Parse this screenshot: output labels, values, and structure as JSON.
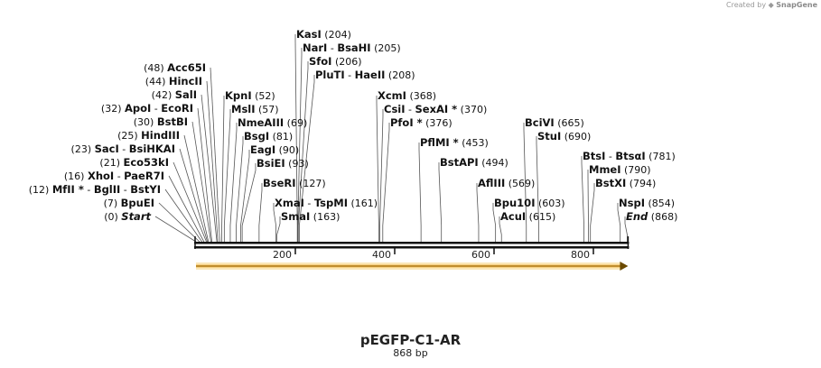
{
  "watermark": {
    "prefix": "Created by",
    "brand": "SnapGene"
  },
  "plasmid": {
    "name": "pEGFP-C1-AR",
    "length_label": "868 bp",
    "length_bp": 868
  },
  "ruler": {
    "ticks": [
      {
        "value": 200,
        "label": "200"
      },
      {
        "value": 400,
        "label": "400"
      },
      {
        "value": 600,
        "label": "600"
      },
      {
        "value": 800,
        "label": "800"
      }
    ]
  },
  "feature": {
    "start": 0,
    "end": 868,
    "direction": "forward",
    "color": "#f2b84b"
  },
  "left_sites": [
    {
      "bp": 0,
      "names": [
        "Start"
      ],
      "pos_label": "(0)",
      "italic": true
    },
    {
      "bp": 7,
      "names": [
        "BpuEI"
      ],
      "pos_label": "(7)"
    },
    {
      "bp": 12,
      "names": [
        "MfII *",
        "BglII",
        "BstYI"
      ],
      "pos_label": "(12)"
    },
    {
      "bp": 16,
      "names": [
        "XhoI",
        "PaeR7I"
      ],
      "pos_label": "(16)"
    },
    {
      "bp": 21,
      "names": [
        "Eco53kI"
      ],
      "pos_label": "(21)"
    },
    {
      "bp": 23,
      "names": [
        "SacI",
        "BsiHKAI"
      ],
      "pos_label": "(23)"
    },
    {
      "bp": 25,
      "names": [
        "HindIII"
      ],
      "pos_label": "(25)"
    },
    {
      "bp": 30,
      "names": [
        "BstBI"
      ],
      "pos_label": "(30)"
    },
    {
      "bp": 32,
      "names": [
        "ApoI",
        "EcoRI"
      ],
      "pos_label": "(32)"
    },
    {
      "bp": 42,
      "names": [
        "SalI"
      ],
      "pos_label": "(42)"
    },
    {
      "bp": 44,
      "names": [
        "HincII"
      ],
      "pos_label": "(44)"
    },
    {
      "bp": 48,
      "names": [
        "Acc65I"
      ],
      "pos_label": "(48)"
    }
  ],
  "right_sites": [
    {
      "bp": 52,
      "names": [
        "KpnI"
      ],
      "pos_label": "(52)"
    },
    {
      "bp": 57,
      "names": [
        "MslI"
      ],
      "pos_label": "(57)"
    },
    {
      "bp": 69,
      "names": [
        "NmeAIII"
      ],
      "pos_label": "(69)"
    },
    {
      "bp": 81,
      "names": [
        "BsgI"
      ],
      "pos_label": "(81)"
    },
    {
      "bp": 90,
      "names": [
        "EagI"
      ],
      "pos_label": "(90)"
    },
    {
      "bp": 93,
      "names": [
        "BsiEI"
      ],
      "pos_label": "(93)"
    },
    {
      "bp": 127,
      "names": [
        "BseRI"
      ],
      "pos_label": "(127)"
    },
    {
      "bp": 161,
      "names": [
        "XmaI",
        "TspMI"
      ],
      "pos_label": "(161)"
    },
    {
      "bp": 163,
      "names": [
        "SmaI"
      ],
      "pos_label": "(163)"
    },
    {
      "bp": 204,
      "names": [
        "KasI"
      ],
      "pos_label": "(204)"
    },
    {
      "bp": 205,
      "names": [
        "NarI",
        "BsaHI"
      ],
      "pos_label": "(205)"
    },
    {
      "bp": 206,
      "names": [
        "SfoI"
      ],
      "pos_label": "(206)"
    },
    {
      "bp": 208,
      "names": [
        "PluTI",
        "HaeII"
      ],
      "pos_label": "(208)"
    },
    {
      "bp": 368,
      "names": [
        "XcmI"
      ],
      "pos_label": "(368)"
    },
    {
      "bp": 370,
      "names": [
        "CsiI",
        "SexAI *"
      ],
      "pos_label": "(370)"
    },
    {
      "bp": 376,
      "names": [
        "PfoI *"
      ],
      "pos_label": "(376)"
    },
    {
      "bp": 453,
      "names": [
        "PflMI *"
      ],
      "pos_label": "(453)"
    },
    {
      "bp": 494,
      "names": [
        "BstAPI"
      ],
      "pos_label": "(494)"
    },
    {
      "bp": 569,
      "names": [
        "AflIII"
      ],
      "pos_label": "(569)"
    },
    {
      "bp": 603,
      "names": [
        "Bpu10I"
      ],
      "pos_label": "(603)"
    },
    {
      "bp": 615,
      "names": [
        "AcuI"
      ],
      "pos_label": "(615)"
    },
    {
      "bp": 665,
      "names": [
        "BciVI"
      ],
      "pos_label": "(665)"
    },
    {
      "bp": 690,
      "names": [
        "StuI"
      ],
      "pos_label": "(690)"
    },
    {
      "bp": 781,
      "names": [
        "BtsI",
        "BtsαI"
      ],
      "pos_label": "(781)"
    },
    {
      "bp": 790,
      "names": [
        "MmeI"
      ],
      "pos_label": "(790)"
    },
    {
      "bp": 794,
      "names": [
        "BstXI"
      ],
      "pos_label": "(794)"
    },
    {
      "bp": 854,
      "names": [
        "NspI"
      ],
      "pos_label": "(854)"
    },
    {
      "bp": 868,
      "names": [
        "End"
      ],
      "pos_label": "(868)",
      "italic": true
    }
  ]
}
